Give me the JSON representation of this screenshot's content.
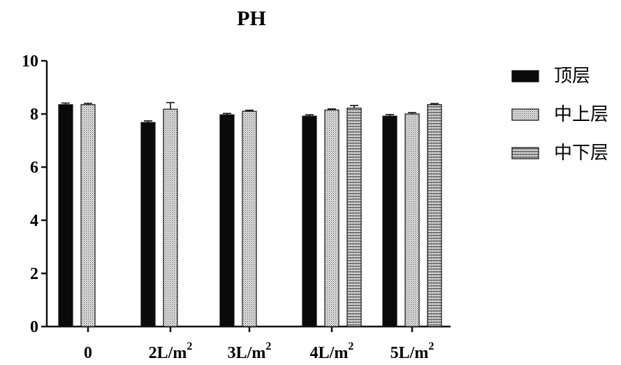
{
  "chart_data": {
    "type": "bar",
    "title": "PH",
    "xlabel": "",
    "ylabel": "",
    "ylim": [
      0,
      10
    ],
    "yticks": [
      0,
      2,
      4,
      6,
      8,
      10
    ],
    "categories": [
      {
        "base": "0",
        "sup": ""
      },
      {
        "base": "2L/m",
        "sup": "2"
      },
      {
        "base": "3L/m",
        "sup": "2"
      },
      {
        "base": "4L/m",
        "sup": "2"
      },
      {
        "base": "5L/m",
        "sup": "2"
      }
    ],
    "series": [
      {
        "name": "顶层",
        "values": [
          8.35,
          7.68,
          7.97,
          7.92,
          7.92
        ],
        "errors": [
          0.06,
          0.06,
          0.05,
          0.05,
          0.06
        ]
      },
      {
        "name": "中上层",
        "values": [
          8.35,
          8.18,
          8.1,
          8.15,
          8.0
        ],
        "errors": [
          0.05,
          0.25,
          0.04,
          0.04,
          0.05
        ]
      },
      {
        "name": "中下层",
        "values": [
          null,
          null,
          null,
          8.22,
          8.35
        ],
        "errors": [
          null,
          null,
          null,
          0.1,
          0.04
        ]
      }
    ],
    "legend_position": "right",
    "grid": false
  }
}
